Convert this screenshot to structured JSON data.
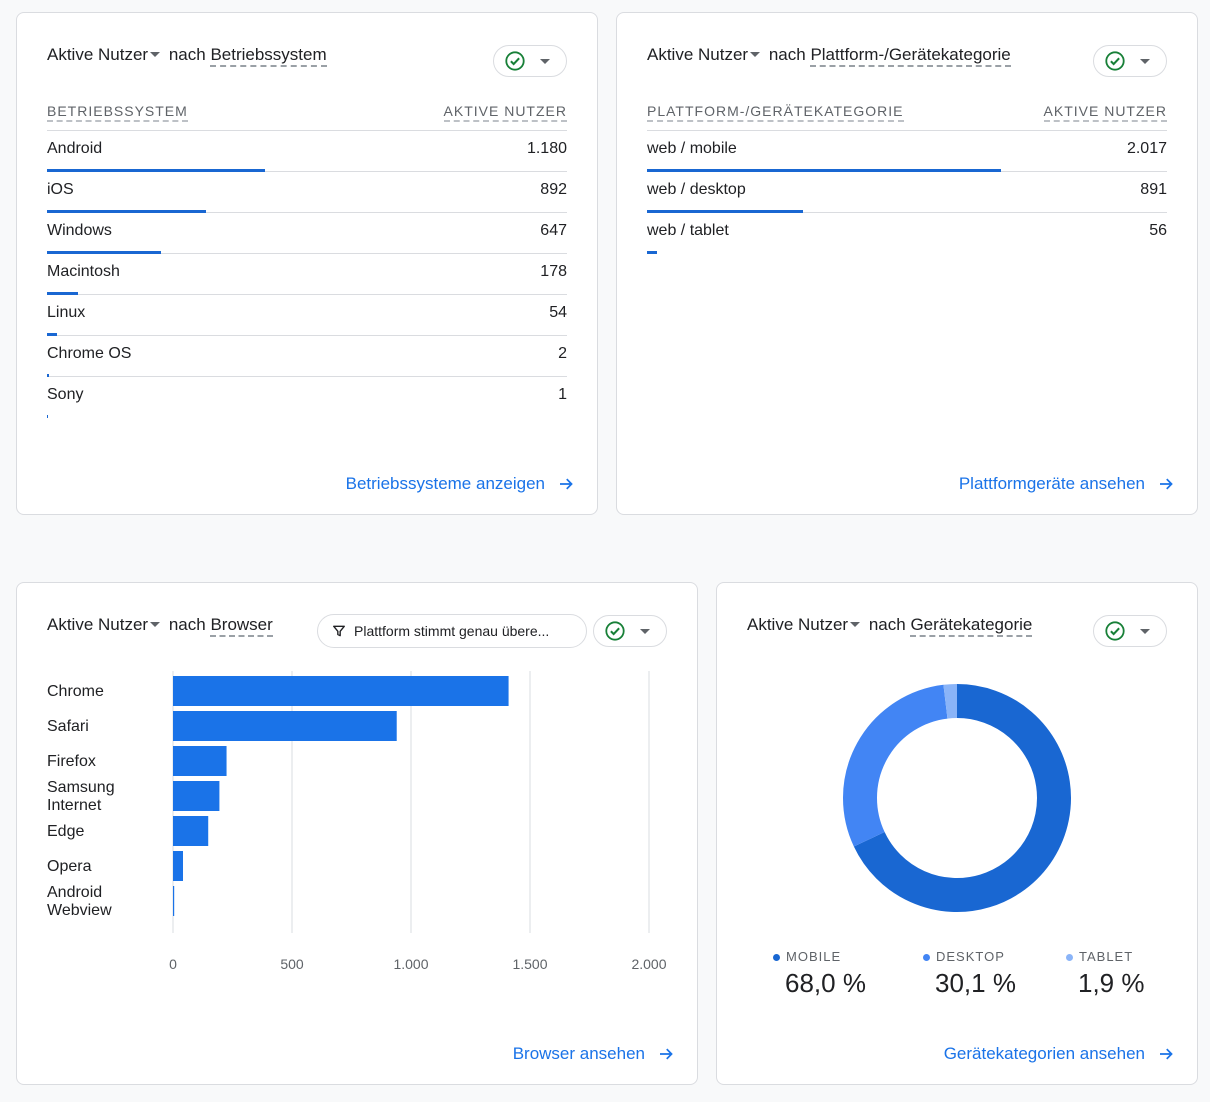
{
  "os_card": {
    "metric": "Aktive Nutzer",
    "by": "nach",
    "dimension": "Betriebssystem",
    "col_dim": "BETRIEBSSYSTEM",
    "col_metric": "AKTIVE NUTZER",
    "rows": [
      {
        "label": "Android",
        "value": "1.180",
        "share": 0.42
      },
      {
        "label": "iOS",
        "value": "892",
        "share": 0.305
      },
      {
        "label": "Windows",
        "value": "647",
        "share": 0.22
      },
      {
        "label": "Macintosh",
        "value": "178",
        "share": 0.06
      },
      {
        "label": "Linux",
        "value": "54",
        "share": 0.02
      },
      {
        "label": "Chrome OS",
        "value": "2",
        "share": 0.004
      },
      {
        "label": "Sony",
        "value": "1",
        "share": 0.002
      }
    ],
    "link": "Betriebssysteme anzeigen"
  },
  "platform_card": {
    "metric": "Aktive Nutzer",
    "by": "nach",
    "dimension": "Plattform-/Gerätekategorie",
    "col_dim": "PLATTFORM-/GERÄTEKATEGORIE",
    "col_metric": "AKTIVE NUTZER",
    "rows": [
      {
        "label": "web / mobile",
        "value": "2.017",
        "share": 0.68
      },
      {
        "label": "web / desktop",
        "value": "891",
        "share": 0.3
      },
      {
        "label": "web / tablet",
        "value": "56",
        "share": 0.019
      }
    ],
    "link": "Plattformgeräte ansehen"
  },
  "browser_card": {
    "metric": "Aktive Nutzer",
    "by": "nach",
    "dimension": "Browser",
    "filter": "Plattform stimmt genau übere...",
    "link": "Browser ansehen"
  },
  "device_card": {
    "metric": "Aktive Nutzer",
    "by": "nach",
    "dimension": "Gerätekategorie",
    "legend": [
      {
        "name": "MOBILE",
        "pct": "68,0 %",
        "color": "#1967d2"
      },
      {
        "name": "DESKTOP",
        "pct": "30,1 %",
        "color": "#4285f4"
      },
      {
        "name": "TABLET",
        "pct": "1,9 %",
        "color": "#8ab4f8"
      }
    ],
    "link": "Gerätekategorien ansehen"
  },
  "chart_data": [
    {
      "type": "bar",
      "orientation": "horizontal",
      "categories": [
        "Chrome",
        "Safari",
        "Firefox",
        "Samsung Internet",
        "Edge",
        "Opera",
        "Android Webview"
      ],
      "values": [
        1410,
        940,
        225,
        195,
        148,
        42,
        5
      ],
      "xticks": [
        "0",
        "500",
        "1.000",
        "1.500",
        "2.000"
      ],
      "xlim": [
        0,
        2000
      ],
      "color": "#1a73e8",
      "grid": true
    },
    {
      "type": "pie",
      "style": "donut",
      "labels": [
        "MOBILE",
        "DESKTOP",
        "TABLET"
      ],
      "values": [
        68.0,
        30.1,
        1.9
      ],
      "colors": [
        "#1967d2",
        "#4285f4",
        "#8ab4f8"
      ]
    }
  ],
  "colors": {
    "accent": "#1a73e8",
    "bar": "#1967d2",
    "check": "#188038"
  },
  "icons": {
    "check": "check-circle-icon",
    "arrow": "arrow-right-icon",
    "filter": "filter-icon"
  }
}
